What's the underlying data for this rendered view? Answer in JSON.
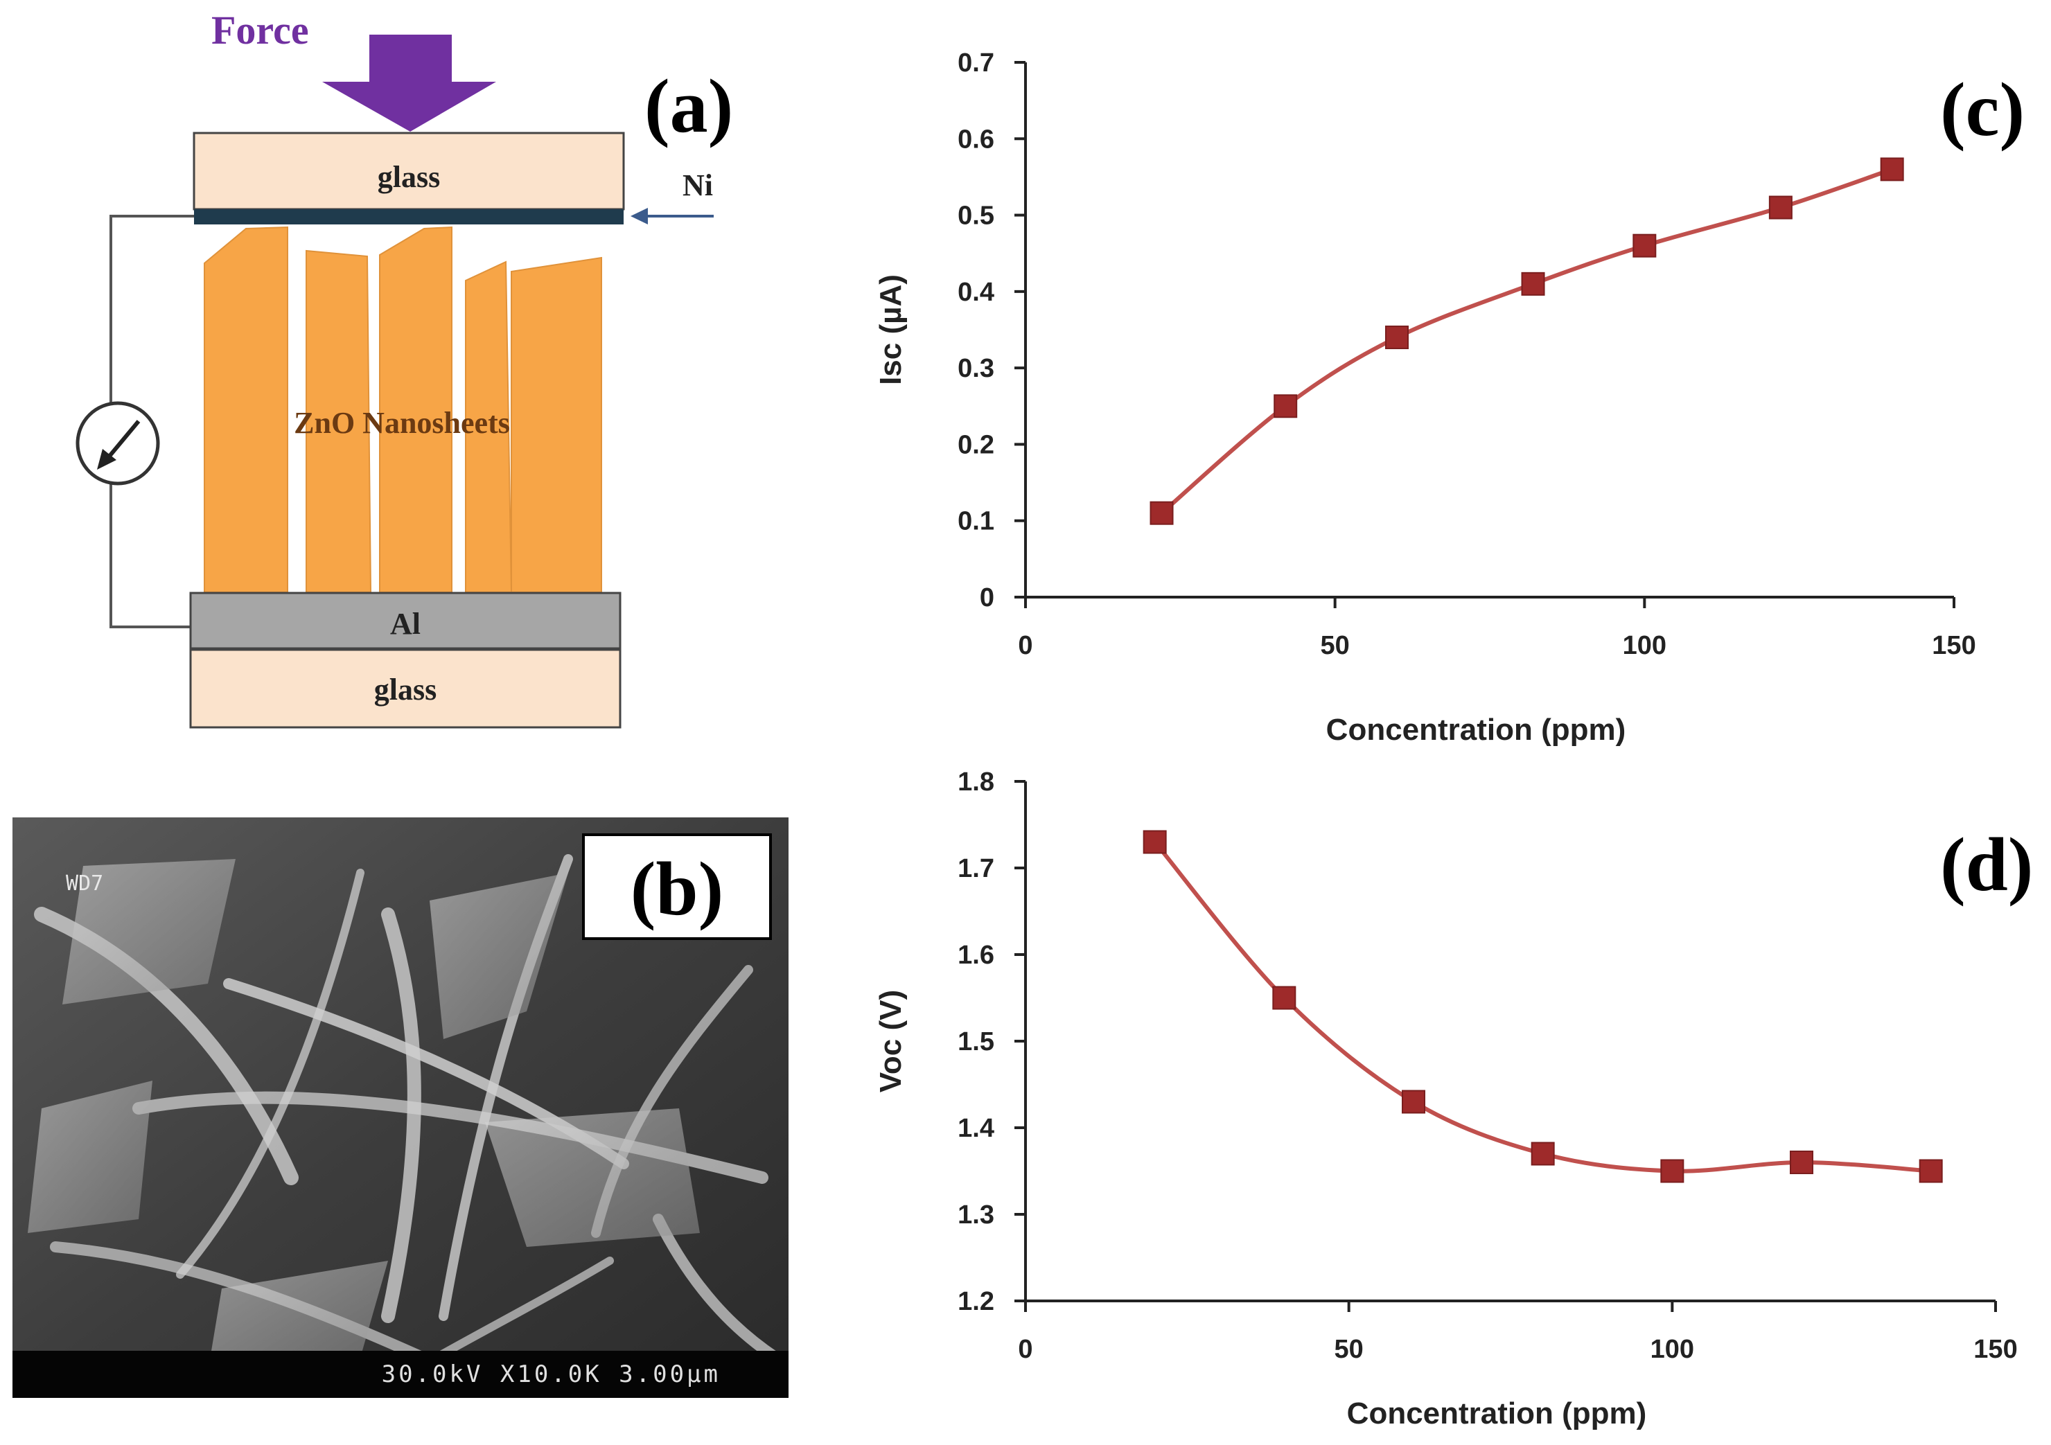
{
  "panels": {
    "a": {
      "label": "(a)",
      "force": "Force",
      "glass_top": "glass",
      "ni": "Ni",
      "zno": "ZnO Nanosheets",
      "al": "Al",
      "glass_bottom": "glass"
    },
    "b": {
      "label": "(b)",
      "wd": "WD7",
      "scale": "30.0kV X10.0K 3.00µm"
    },
    "c": {
      "label": "(c)"
    },
    "d": {
      "label": "(d)"
    }
  },
  "colors": {
    "series": "#c0504d",
    "marker": "#9e2a2a",
    "orange": "#f7a547",
    "glass": "#fbe3cc",
    "al": "#a6a6a6",
    "force": "#7030a0"
  },
  "chart_data": [
    {
      "id": "c",
      "type": "line",
      "xlabel": "Concentration (ppm)",
      "ylabel": "Isc (µA)",
      "xlim": [
        0,
        150
      ],
      "ylim": [
        0,
        0.7
      ],
      "xticks": [
        0,
        50,
        100,
        150
      ],
      "yticks": [
        0,
        0.1,
        0.2,
        0.3,
        0.4,
        0.5,
        0.6,
        0.7
      ],
      "ytick_labels": [
        "0",
        "0.1",
        "0.2",
        "0.3",
        "0.4",
        "0.5",
        "0.6",
        "0.7"
      ],
      "series": [
        {
          "name": "Isc",
          "x": [
            22,
            42,
            60,
            82,
            100,
            122,
            140
          ],
          "y": [
            0.11,
            0.25,
            0.34,
            0.41,
            0.46,
            0.51,
            0.56
          ]
        }
      ]
    },
    {
      "id": "d",
      "type": "line",
      "xlabel": "Concentration (ppm)",
      "ylabel": "Voc (V)",
      "xlim": [
        0,
        150
      ],
      "ylim": [
        1.2,
        1.8
      ],
      "xticks": [
        0,
        50,
        100,
        150
      ],
      "yticks": [
        1.2,
        1.3,
        1.4,
        1.5,
        1.6,
        1.7,
        1.8
      ],
      "ytick_labels": [
        "1.2",
        "1.3",
        "1.4",
        "1.5",
        "1.6",
        "1.7",
        "1.8"
      ],
      "series": [
        {
          "name": "Voc",
          "x": [
            20,
            40,
            60,
            80,
            100,
            120,
            140
          ],
          "y": [
            1.73,
            1.55,
            1.43,
            1.37,
            1.35,
            1.36,
            1.35
          ]
        }
      ]
    }
  ]
}
